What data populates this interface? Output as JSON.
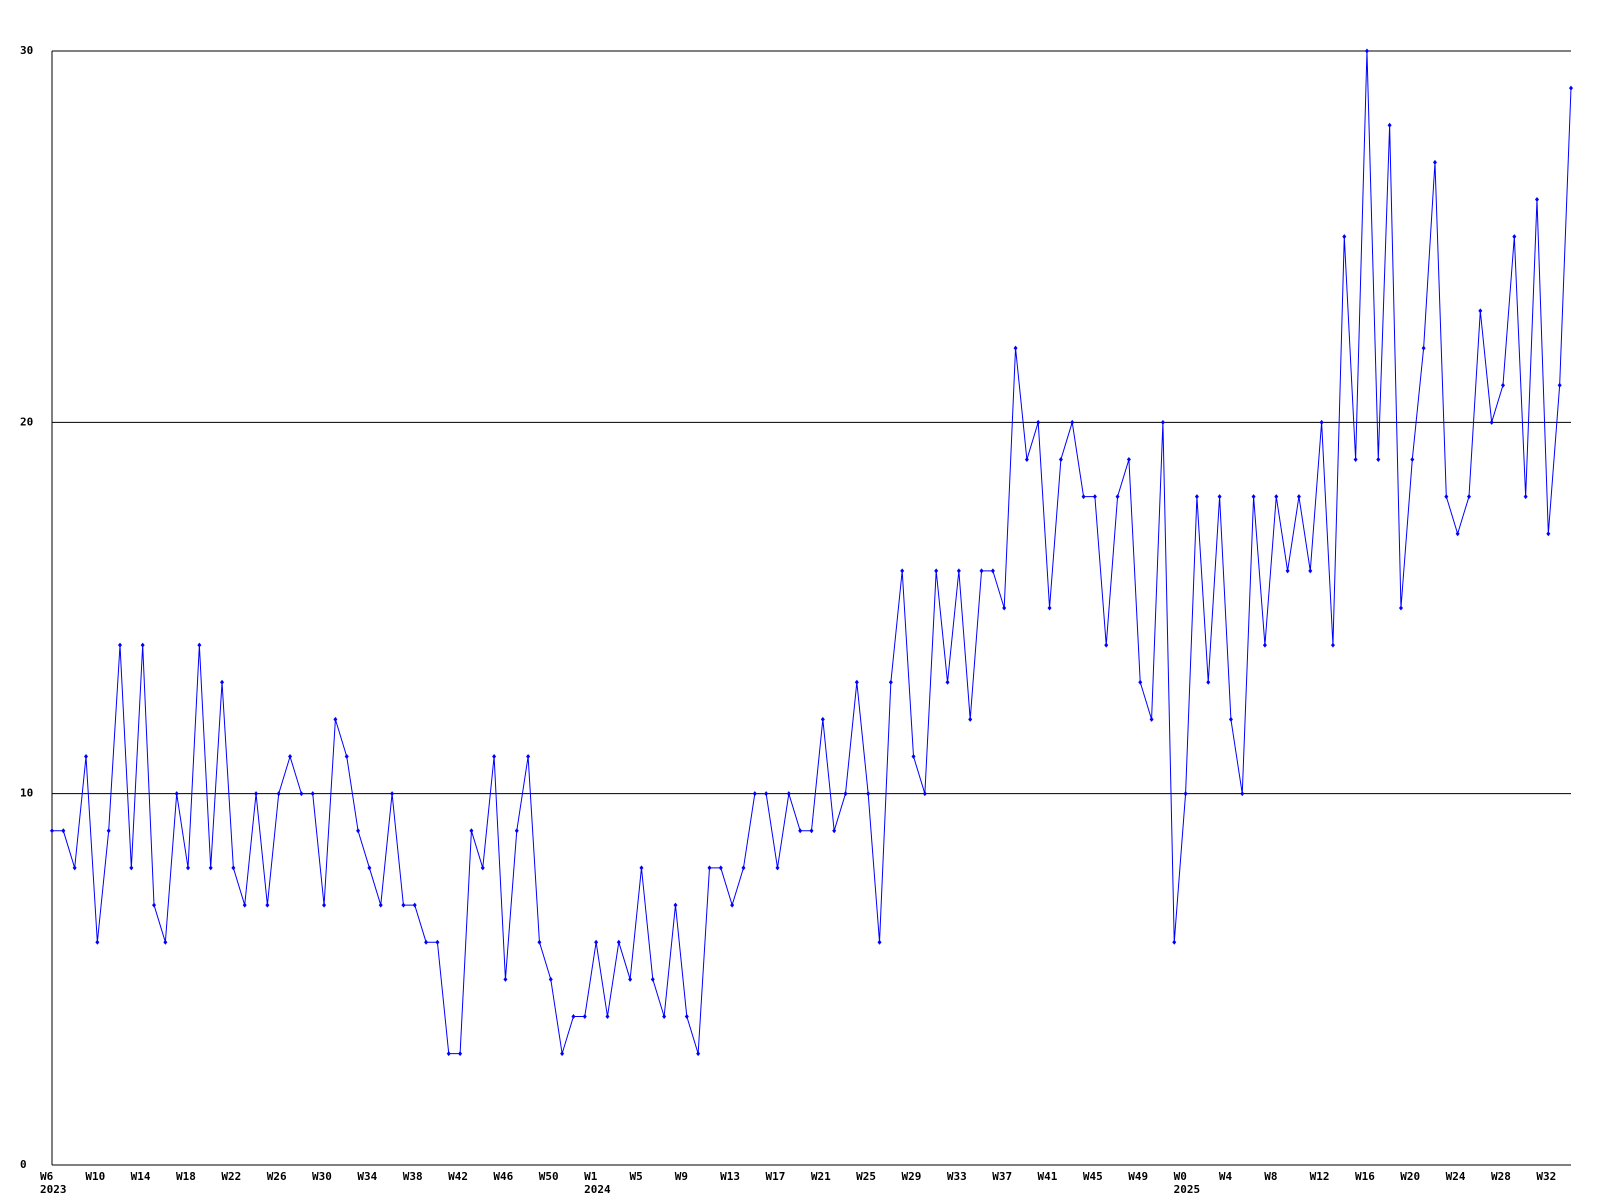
{
  "chart_data": {
    "type": "line",
    "categories": [
      "W6\n2023",
      null,
      null,
      null,
      "W10",
      null,
      null,
      null,
      "W14",
      null,
      null,
      null,
      "W18",
      null,
      null,
      null,
      "W22",
      null,
      null,
      null,
      "W26",
      null,
      null,
      null,
      "W30",
      null,
      null,
      null,
      "W34",
      null,
      null,
      null,
      "W38",
      null,
      null,
      null,
      "W42",
      null,
      null,
      null,
      "W46",
      null,
      null,
      null,
      "W50",
      null,
      null,
      null,
      "W1\n2024",
      null,
      null,
      null,
      "W5",
      null,
      null,
      null,
      "W9",
      null,
      null,
      null,
      "W13",
      null,
      null,
      null,
      "W17",
      null,
      null,
      null,
      "W21",
      null,
      null,
      null,
      "W25",
      null,
      null,
      null,
      "W29",
      null,
      null,
      null,
      "W33",
      null,
      null,
      null,
      "W37",
      null,
      null,
      null,
      "W41",
      null,
      null,
      null,
      "W45",
      null,
      null,
      null,
      "W49",
      null,
      null,
      null,
      "W0\n2025",
      null,
      null,
      null,
      "W4",
      null,
      null,
      null,
      "W8",
      null,
      null,
      null,
      "W12",
      null,
      null,
      null,
      "W16",
      null,
      null,
      null,
      "W20",
      null,
      null,
      null,
      "W24",
      null,
      null,
      null,
      "W28",
      null,
      null,
      null,
      "W32",
      null,
      null
    ],
    "series": [
      {
        "color": "#0000ff",
        "values": [
          9,
          9,
          8,
          11,
          6,
          9,
          14,
          8,
          14,
          7,
          6,
          10,
          8,
          14,
          8,
          13,
          8,
          7,
          10,
          7,
          10,
          11,
          10,
          10,
          7,
          12,
          11,
          9,
          8,
          7,
          10,
          7,
          7,
          6,
          6,
          3,
          3,
          9,
          8,
          11,
          5,
          9,
          11,
          6,
          5,
          3,
          4,
          4,
          6,
          4,
          6,
          5,
          8,
          5,
          4,
          7,
          4,
          3,
          8,
          8,
          7,
          8,
          10,
          10,
          8,
          10,
          9,
          9,
          12,
          9,
          10,
          13,
          10,
          6,
          13,
          16,
          11,
          10,
          16,
          13,
          16,
          12,
          16,
          16,
          15,
          22,
          19,
          20,
          15,
          19,
          20,
          18,
          18,
          14,
          18,
          19,
          13,
          12,
          20,
          6,
          10,
          18,
          13,
          18,
          12,
          10,
          18,
          14,
          18,
          16,
          18,
          16,
          20,
          14,
          25,
          19,
          30,
          19,
          28,
          15,
          19,
          22,
          27,
          18,
          17,
          18,
          23,
          20,
          21,
          25,
          18,
          26,
          17,
          21,
          29
        ]
      }
    ],
    "ylim": [
      0,
      30
    ],
    "yticks": [
      0,
      10,
      20,
      30
    ],
    "grid": true
  }
}
